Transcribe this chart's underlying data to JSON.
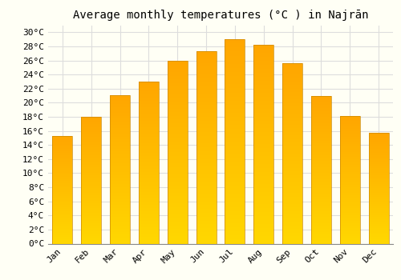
{
  "title": "Average monthly temperatures (°C ) in Najrān",
  "months": [
    "Jan",
    "Feb",
    "Mar",
    "Apr",
    "May",
    "Jun",
    "Jul",
    "Aug",
    "Sep",
    "Oct",
    "Nov",
    "Dec"
  ],
  "temperatures": [
    15.3,
    18.0,
    21.1,
    23.0,
    25.9,
    27.3,
    29.0,
    28.2,
    25.6,
    20.9,
    18.1,
    15.7
  ],
  "bar_color_main": "#FFA500",
  "bar_color_light": "#FFD700",
  "background_color": "#FFFFF5",
  "grid_color": "#DDDDDD",
  "ylim": [
    0,
    31
  ],
  "yticks": [
    0,
    2,
    4,
    6,
    8,
    10,
    12,
    14,
    16,
    18,
    20,
    22,
    24,
    26,
    28,
    30
  ],
  "title_fontsize": 10,
  "tick_fontsize": 8,
  "font_family": "monospace"
}
